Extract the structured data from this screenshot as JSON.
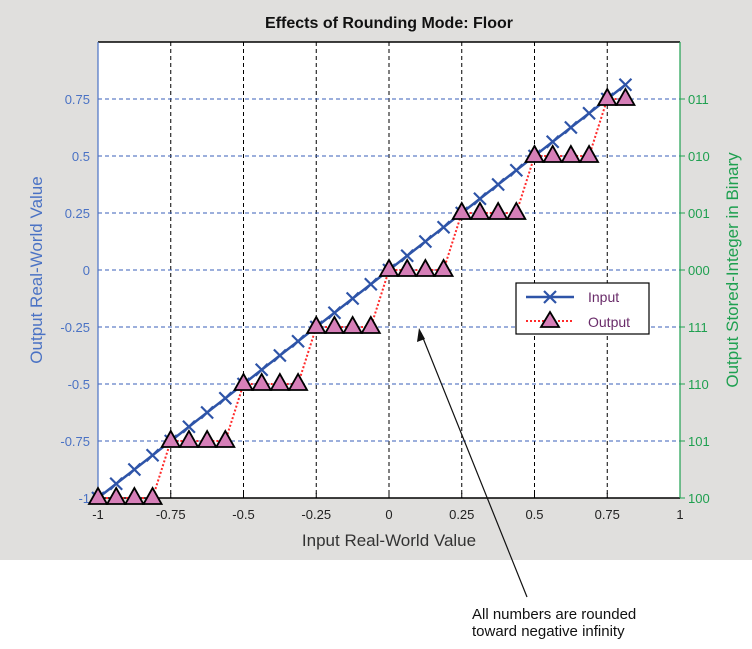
{
  "chart_data": {
    "type": "line",
    "title": "Effects of Rounding Mode: Floor",
    "xlabel": "Input Real-World Value",
    "ylabel": "Output Real-World Value",
    "y2label": "Output Stored-Integer in Binary",
    "xlim": [
      -1,
      1
    ],
    "ylim": [
      -1,
      1
    ],
    "grid": true,
    "xticks": [
      "-1",
      "-0.75",
      "-0.5",
      "-0.25",
      "0",
      "0.25",
      "0.5",
      "0.75",
      "1"
    ],
    "xtick_values": [
      -1,
      -0.75,
      -0.5,
      -0.25,
      0,
      0.25,
      0.5,
      0.75,
      1
    ],
    "yticks": [
      "-1",
      "-0.75",
      "-0.5",
      "-0.25",
      "0",
      "0.25",
      "0.5",
      "0.75"
    ],
    "ytick_values": [
      -1,
      -0.75,
      -0.5,
      -0.25,
      0,
      0.25,
      0.5,
      0.75
    ],
    "y2ticks": [
      "100",
      "101",
      "110",
      "111",
      "000",
      "001",
      "010",
      "011"
    ],
    "legend_position": "center-right",
    "x": [
      -1,
      -0.9375,
      -0.875,
      -0.8125,
      -0.75,
      -0.6875,
      -0.625,
      -0.5625,
      -0.5,
      -0.4375,
      -0.375,
      -0.3125,
      -0.25,
      -0.1875,
      -0.125,
      -0.0625,
      0,
      0.0625,
      0.125,
      0.1875,
      0.25,
      0.3125,
      0.375,
      0.4375,
      0.5,
      0.5625,
      0.625,
      0.6875,
      0.75,
      0.8125
    ],
    "series": [
      {
        "name": "Input",
        "color": "#2e54a8",
        "marker": "x",
        "values": [
          -1,
          -0.9375,
          -0.875,
          -0.8125,
          -0.75,
          -0.6875,
          -0.625,
          -0.5625,
          -0.5,
          -0.4375,
          -0.375,
          -0.3125,
          -0.25,
          -0.1875,
          -0.125,
          -0.0625,
          0,
          0.0625,
          0.125,
          0.1875,
          0.25,
          0.3125,
          0.375,
          0.4375,
          0.5,
          0.5625,
          0.625,
          0.6875,
          0.75,
          0.8125
        ]
      },
      {
        "name": "Output",
        "color": "#ff2a2a",
        "marker": "triangle",
        "marker_fill": "#d67fb8",
        "values": [
          -1,
          -1,
          -1,
          -1,
          -0.75,
          -0.75,
          -0.75,
          -0.75,
          -0.5,
          -0.5,
          -0.5,
          -0.5,
          -0.25,
          -0.25,
          -0.25,
          -0.25,
          0,
          0,
          0,
          0,
          0.25,
          0.25,
          0.25,
          0.25,
          0.5,
          0.5,
          0.5,
          0.5,
          0.75,
          0.75
        ]
      }
    ],
    "annotation": [
      "All numbers are rounded",
      "toward negative infinity"
    ],
    "left_axis_color": "#4a72c4",
    "right_axis_color": "#1fa050"
  }
}
